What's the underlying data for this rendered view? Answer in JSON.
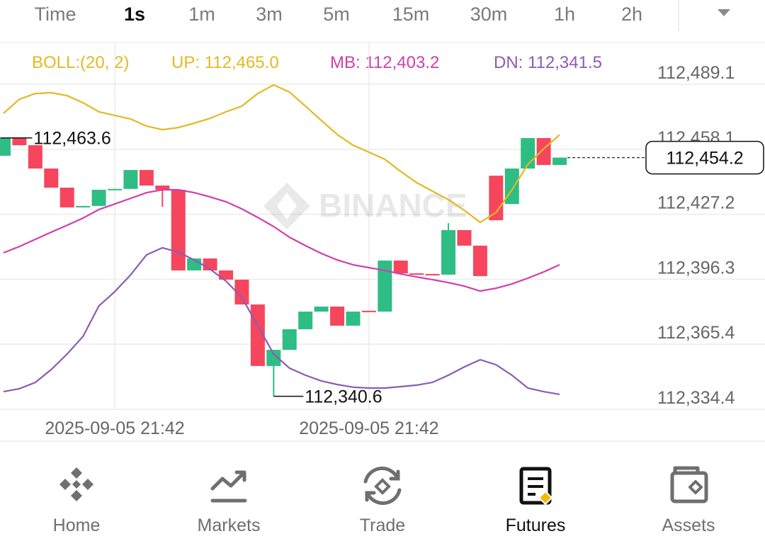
{
  "tabs": [
    "Time",
    "1s",
    "1m",
    "3m",
    "5m",
    "15m",
    "30m",
    "1h",
    "2h"
  ],
  "indicator": {
    "name": "BOLL:(20, 2)",
    "up": "UP: 112,465.0",
    "mb": "MB: 112,403.2",
    "dn": "DN: 112,341.5"
  },
  "chart_data": {
    "type": "candlestick",
    "watermark": "BINANCE",
    "categories": [
      null,
      null,
      null,
      null,
      null,
      null,
      null,
      "2025-09-05 21:42",
      null,
      null,
      null,
      null,
      null,
      null,
      null,
      null,
      null,
      null,
      null,
      null,
      null,
      null,
      null,
      "2025-09-05 21:42",
      null,
      null,
      null,
      null,
      null,
      null,
      null,
      null,
      null,
      null,
      null,
      null
    ],
    "open": [
      112455.1,
      112463.5,
      112460.1,
      112449.0,
      112439.9,
      112430.5,
      112431.2,
      112438.9,
      112439.3,
      112448.3,
      112440.9,
      112438.9,
      112400.5,
      112406.2,
      112400.5,
      112396.1,
      112384.3,
      112355.0,
      112362.7,
      112372.5,
      112380.9,
      112383.3,
      112374.2,
      112381.3,
      112380.9,
      112405.2,
      112399.1,
      112398.8,
      112398.5,
      112419.7,
      112412.3,
      112445.6,
      112432.1,
      112449.0,
      112463.5,
      112450.7
    ],
    "high": [
      112463.5,
      112463.6,
      112460.1,
      112449.0,
      112439.9,
      112431.2,
      112438.9,
      112439.3,
      112448.3,
      112448.3,
      112440.9,
      112438.9,
      112406.2,
      112406.2,
      112400.5,
      112396.1,
      112384.3,
      112362.7,
      112372.5,
      112380.9,
      112383.3,
      112383.3,
      112380.9,
      112381.3,
      112405.2,
      112405.2,
      112399.1,
      112398.8,
      112423.0,
      112419.7,
      112412.3,
      112445.6,
      112449.0,
      112463.5,
      112463.5,
      112454.2
    ],
    "low": [
      112455.1,
      112460.1,
      112449.0,
      112439.9,
      112430.5,
      112430.5,
      112431.2,
      112438.9,
      112439.3,
      112440.9,
      112430.8,
      112400.5,
      112400.5,
      112400.5,
      112396.1,
      112384.3,
      112355.0,
      112340.6,
      112362.7,
      112372.5,
      112380.9,
      112374.2,
      112374.2,
      112380.9,
      112380.9,
      112399.1,
      112398.8,
      112398.5,
      112398.5,
      112412.3,
      112397.8,
      112424.4,
      112432.1,
      112449.0,
      112450.7,
      112450.7
    ],
    "close": [
      112463.5,
      112460.1,
      112449.0,
      112439.9,
      112430.5,
      112431.2,
      112438.9,
      112439.3,
      112448.3,
      112440.9,
      112438.9,
      112400.5,
      112406.2,
      112400.5,
      112396.1,
      112384.3,
      112355.0,
      112362.7,
      112372.5,
      112380.9,
      112383.3,
      112374.2,
      112380.9,
      112380.9,
      112405.2,
      112399.1,
      112398.8,
      112398.5,
      112419.7,
      112412.3,
      112397.8,
      112424.4,
      112449.0,
      112463.5,
      112450.7,
      112454.2
    ],
    "up_color": "#2ebd85",
    "down_color": "#f6465d",
    "series": [
      {
        "color": "#e3b922",
        "values": [
          112475.3,
          112482.0,
          112484.7,
          112485.1,
          112483.7,
          112480.3,
          112476.0,
          112474.3,
          112472.6,
          112469.2,
          112467.5,
          112468.5,
          112470.6,
          112472.9,
          112476.0,
          112478.7,
          112484.7,
          112488.8,
          112485.4,
          112478.7,
          112471.9,
          112465.2,
          112460.1,
          112456.8,
          112453.4,
          112447.6,
          112442.3,
          112438.2,
          112434.2,
          112429.1,
          112423.4,
          112428.1,
          112438.9,
          112451.0,
          112458.4,
          112465.0
        ]
      },
      {
        "color": "#cf3fae",
        "values": [
          112408.9,
          112411.9,
          112415.3,
          112418.7,
          112422.0,
          112425.4,
          112429.5,
          112432.1,
          112434.8,
          112437.5,
          112438.9,
          112438.9,
          112437.5,
          112435.5,
          112433.2,
          112429.8,
          112425.7,
          112421.4,
          112416.3,
          112412.3,
          112408.6,
          112405.5,
          112403.2,
          112401.8,
          112400.5,
          112398.8,
          112397.4,
          112396.1,
          112394.7,
          112393.0,
          112390.7,
          112392.0,
          112394.1,
          112396.8,
          112399.8,
          112403.2
        ]
      },
      {
        "color": "#8c5cb4",
        "values": [
          112342.8,
          112344.2,
          112347.2,
          112353.3,
          112360.7,
          112369.1,
          112383.6,
          112390.4,
          112398.4,
          112407.9,
          112411.3,
          112409.2,
          112405.5,
          112401.1,
          112395.4,
          112387.7,
          112374.2,
          112360.7,
          112354.0,
          112350.6,
          112347.9,
          112346.2,
          112344.9,
          112344.5,
          112344.5,
          112345.2,
          112345.9,
          112347.2,
          112350.6,
          112354.6,
          112358.0,
          112355.6,
          112350.6,
          112344.5,
          112342.8,
          112341.5
        ]
      }
    ],
    "ylim": [
      112334.4,
      112509.0
    ],
    "yticks": [
      {
        "value": 112334.4,
        "label": "112,334.4"
      },
      {
        "value": 112365.4,
        "label": "112,365.4"
      },
      {
        "value": 112396.3,
        "label": "112,396.3"
      },
      {
        "value": 112427.2,
        "label": "112,427.2"
      },
      {
        "value": 112458.1,
        "label": "112,458.1"
      },
      {
        "value": 112489.1,
        "label": "112,489.1"
      }
    ],
    "grid": true,
    "max_label": "112,463.6",
    "min_label": "112,340.6",
    "last_label": "112,454.2"
  },
  "nav": [
    "Home",
    "Markets",
    "Trade",
    "Futures",
    "Assets"
  ]
}
